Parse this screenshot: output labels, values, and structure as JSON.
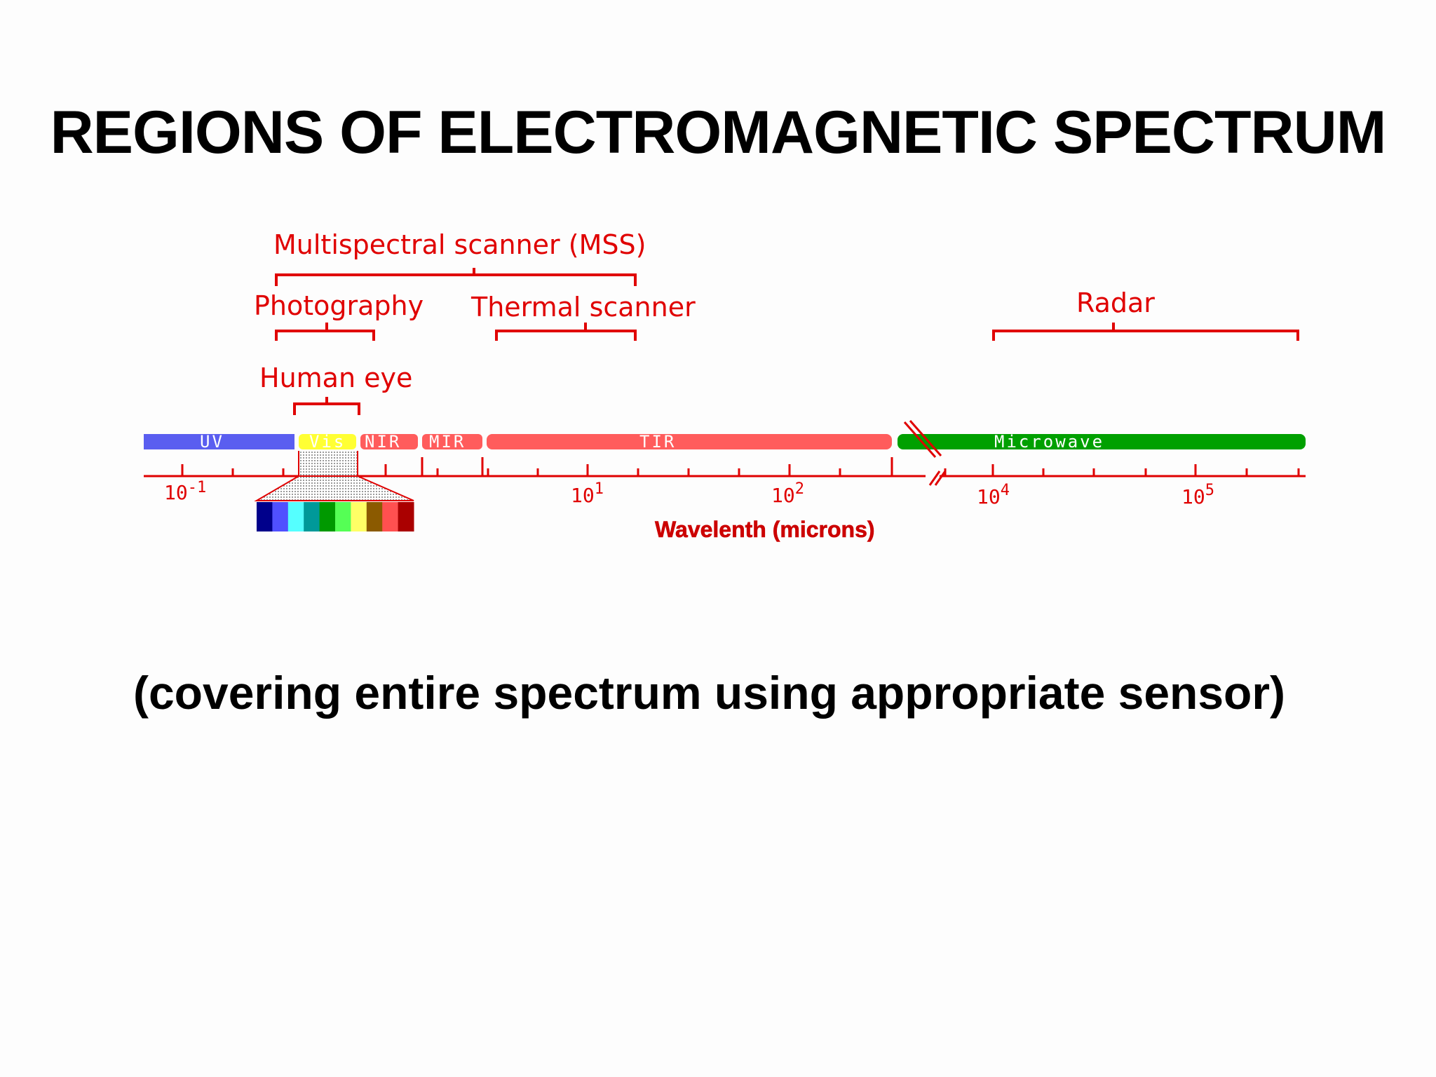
{
  "title": "REGIONS OF ELECTROMAGNETIC SPECTRUM",
  "subtitle": "(covering entire spectrum using appropriate sensor)",
  "sensors": [
    {
      "key": "mss",
      "label": "Multispectral scanner (MSS)"
    },
    {
      "key": "photo",
      "label": "Photography"
    },
    {
      "key": "thermal",
      "label": "Thermal scanner"
    },
    {
      "key": "radar",
      "label": "Radar"
    },
    {
      "key": "eye",
      "label": "Human eye"
    }
  ],
  "bands": [
    {
      "key": "uv",
      "label": "UV",
      "color": "#5a5ef0"
    },
    {
      "key": "vis",
      "label": "Vis",
      "color": "#ffff33"
    },
    {
      "key": "nir",
      "label": "NIR",
      "color": "#ff5c5c"
    },
    {
      "key": "mir",
      "label": "MIR",
      "color": "#ff5c5c"
    },
    {
      "key": "tir",
      "label": "TIR",
      "color": "#ff5c5c"
    },
    {
      "key": "microwave",
      "label": "Microwave",
      "color": "#00a000"
    }
  ],
  "axis": {
    "label": "Wavelenth (microns)",
    "ticks": [
      {
        "base": "10",
        "exp": "-1"
      },
      {
        "base": "10",
        "exp": "1"
      },
      {
        "base": "10",
        "exp": "2"
      },
      {
        "base": "10",
        "exp": "4"
      },
      {
        "base": "10",
        "exp": "5"
      }
    ]
  },
  "visible_spectrum_colors": [
    "#00008b",
    "#5050ff",
    "#55ffff",
    "#009999",
    "#009900",
    "#55ff55",
    "#ffff66",
    "#8b5a00",
    "#ff5050",
    "#aa0000"
  ],
  "colors": {
    "accent": "#e00000"
  }
}
